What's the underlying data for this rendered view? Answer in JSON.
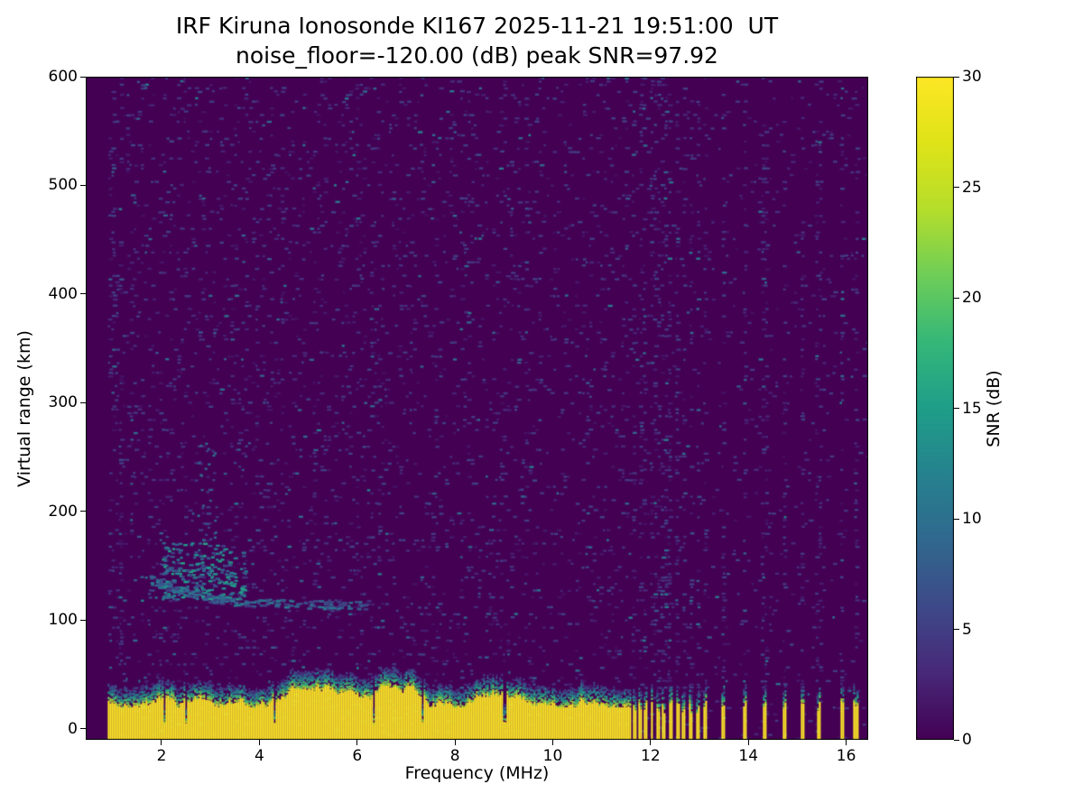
{
  "figure": {
    "title_line1": "IRF Kiruna Ionosonde KI167 2025-11-21 19:51:00  UT",
    "title_line2": "noise_floor=-120.00 (dB) peak SNR=97.92"
  },
  "chart_data": {
    "type": "heatmap",
    "title": "IRF Kiruna Ionosonde KI167 2025-11-21 19:51:00  UT",
    "subtitle": "noise_floor=-120.00 (dB) peak SNR=97.92",
    "station": "IRF Kiruna Ionosonde KI167",
    "timestamp_ut": "2025-11-21 19:51:00",
    "noise_floor_db": -120.0,
    "peak_snr_db": 97.92,
    "xlabel": "Frequency (MHz)",
    "ylabel": "Virtual range (km)",
    "colorbar_label": "SNR (dB)",
    "xlim": [
      0.45,
      16.45
    ],
    "ylim": [
      -10,
      600
    ],
    "clim": [
      0,
      30
    ],
    "xticks": [
      2,
      4,
      6,
      8,
      10,
      12,
      14,
      16
    ],
    "yticks": [
      0,
      100,
      200,
      300,
      400,
      500,
      600
    ],
    "cticks": [
      0,
      5,
      10,
      15,
      20,
      25,
      30
    ],
    "colormap": "viridis",
    "colormap_stops": [
      [
        0.0,
        68,
        1,
        84
      ],
      [
        0.1,
        72,
        40,
        120
      ],
      [
        0.2,
        62,
        73,
        137
      ],
      [
        0.3,
        49,
        104,
        142
      ],
      [
        0.4,
        38,
        130,
        142
      ],
      [
        0.5,
        31,
        158,
        137
      ],
      [
        0.6,
        53,
        183,
        121
      ],
      [
        0.7,
        110,
        206,
        88
      ],
      [
        0.8,
        181,
        222,
        43
      ],
      [
        0.9,
        223,
        227,
        24
      ],
      [
        1.0,
        253,
        231,
        37
      ]
    ],
    "features": {
      "background_noise": {
        "fill_prob": 0.11,
        "snr_db_range": [
          1,
          8
        ]
      },
      "ground_clutter_band": {
        "freq_range_mhz": [
          0.9,
          11.58
        ],
        "top_km_mean": 30,
        "snr_db": 30
      },
      "clutter_comb_segments_mhz": [
        [
          11.62,
          11.68
        ],
        [
          11.74,
          11.8
        ],
        [
          11.86,
          11.92
        ],
        [
          11.98,
          12.04
        ],
        [
          12.1,
          12.17
        ],
        [
          12.23,
          12.3
        ],
        [
          12.36,
          12.43
        ],
        [
          12.5,
          12.57
        ],
        [
          12.63,
          12.71
        ],
        [
          12.77,
          12.85
        ],
        [
          12.92,
          13.0
        ],
        [
          13.07,
          13.15
        ],
        [
          13.44,
          13.52
        ],
        [
          13.88,
          13.96
        ],
        [
          14.28,
          14.36
        ],
        [
          14.68,
          14.76
        ],
        [
          15.06,
          15.14
        ],
        [
          15.38,
          15.46
        ],
        [
          15.86,
          15.94
        ],
        [
          16.14,
          16.22
        ]
      ],
      "band_notches_mhz": [
        2.05,
        2.48,
        4.3,
        6.33,
        7.32,
        9.0
      ],
      "sporadic_e_trace": {
        "polyline_mhz_km": [
          [
            1.75,
            138
          ],
          [
            2.2,
            130
          ],
          [
            2.7,
            124
          ],
          [
            3.3,
            118
          ],
          [
            4.2,
            116
          ],
          [
            5.2,
            115
          ],
          [
            6.2,
            114
          ]
        ],
        "snr_db_range": [
          5,
          12
        ]
      },
      "echo_cluster": {
        "freq_mhz": [
          2.0,
          3.7
        ],
        "range_km": [
          120,
          172
        ],
        "snr_db_range": [
          5,
          16
        ]
      },
      "upper_scatter": {
        "freq_mhz": [
          2.72,
          3.12
        ],
        "range_km": [
          160,
          268
        ],
        "snr_db_range": [
          4,
          11
        ]
      },
      "interference_lines": "vertical noise lines above 11.6 MHz aligned with clutter comb segments"
    },
    "render": {
      "seed": 1337,
      "data_fmin": 0.9,
      "data_fmax": 16.45,
      "band_full_until": 11.58,
      "noise_rows": 198,
      "noise_cols": 212,
      "band_top_base": 30,
      "band_top_min": 20,
      "band_top_max": 40
    }
  }
}
